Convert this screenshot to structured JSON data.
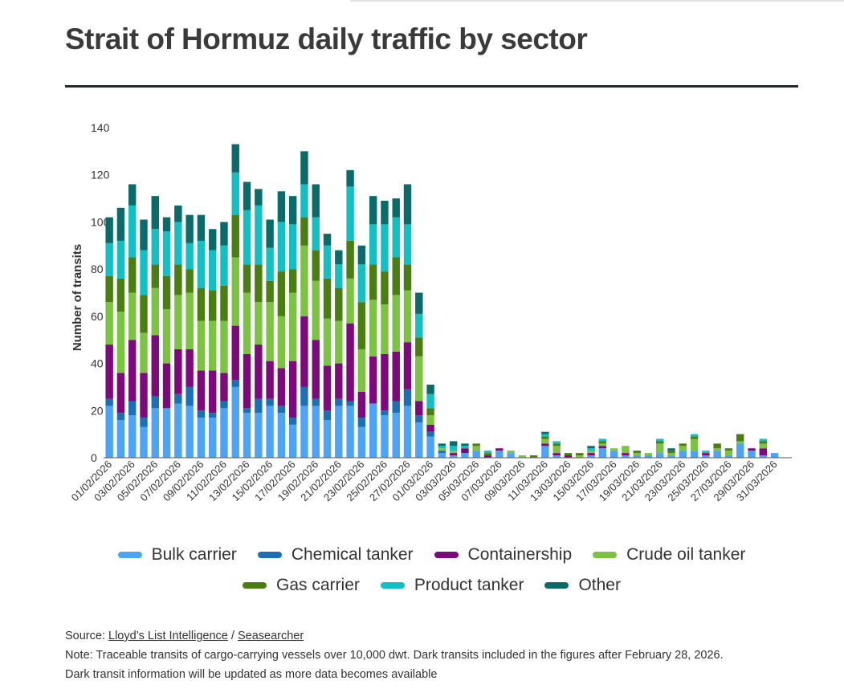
{
  "title": "Strait of Hormuz daily traffic by sector",
  "footer": {
    "source_label": "Source: ",
    "source_link_1": "Lloyd’s List Intelligence",
    "source_sep": " / ",
    "source_link_2": "Seasearcher",
    "note_line_1": "Note: Traceable transits of cargo-carrying vessels over 10,000 dwt. Dark transits included in the figures after February 28, 2026.",
    "note_line_2": "Dark transit information will be updated as more data becomes available"
  },
  "chart_data": {
    "type": "bar",
    "stacked": true,
    "title": "Strait of Hormuz daily traffic by sector",
    "ylabel": "Number of transits",
    "xlabel": "",
    "ylim": [
      0,
      140
    ],
    "yticks": [
      0,
      20,
      40,
      60,
      80,
      100,
      120,
      140
    ],
    "grid": false,
    "legend_position": "bottom",
    "categories": [
      "01/02/2026",
      "02/02/2026",
      "03/02/2026",
      "04/02/2026",
      "05/02/2026",
      "06/02/2026",
      "07/02/2026",
      "08/02/2026",
      "09/02/2026",
      "10/02/2026",
      "11/02/2026",
      "12/02/2026",
      "13/02/2026",
      "14/02/2026",
      "15/02/2026",
      "16/02/2026",
      "17/02/2026",
      "18/02/2026",
      "19/02/2026",
      "20/02/2026",
      "21/02/2026",
      "22/02/2026",
      "23/02/2026",
      "24/02/2026",
      "25/02/2026",
      "26/02/2026",
      "27/02/2026",
      "28/02/2026",
      "01/03/2026",
      "02/03/2026",
      "03/03/2026",
      "04/03/2026",
      "05/03/2026",
      "06/03/2026",
      "07/03/2026",
      "08/03/2026",
      "09/03/2026",
      "10/03/2026",
      "11/03/2026",
      "12/03/2026",
      "13/03/2026",
      "14/03/2026",
      "15/03/2026",
      "16/03/2026",
      "17/03/2026",
      "18/03/2026",
      "19/03/2026",
      "20/03/2026",
      "21/03/2026",
      "22/03/2026",
      "23/03/2026",
      "24/03/2026",
      "25/03/2026",
      "26/03/2026",
      "27/03/2026",
      "28/03/2026",
      "29/03/2026",
      "30/03/2026",
      "31/03/2026",
      "01/04/2026"
    ],
    "tick_labels_shown": [
      "01/02/2026",
      "03/02/2026",
      "05/02/2026",
      "07/02/2026",
      "09/02/2026",
      "11/02/2026",
      "13/02/2026",
      "15/02/2026",
      "17/02/2026",
      "19/02/2026",
      "21/02/2026",
      "23/02/2026",
      "25/02/2026",
      "27/02/2026",
      "01/03/2026",
      "03/03/2026",
      "05/03/2026",
      "07/03/2026",
      "09/03/2026",
      "11/03/2026",
      "13/03/2026",
      "15/03/2026",
      "17/03/2026",
      "19/03/2026",
      "21/03/2026",
      "23/03/2026",
      "25/03/2026",
      "27/03/2026",
      "29/03/2026",
      "31/03/2026"
    ],
    "series": [
      {
        "name": "Bulk carrier",
        "color": "#4da3f5",
        "values": [
          22,
          16,
          18,
          13,
          21,
          21,
          23,
          22,
          17,
          17,
          21,
          30,
          19,
          19,
          22,
          19,
          14,
          22,
          22,
          16,
          22,
          22,
          13,
          23,
          18,
          19,
          22,
          15,
          9,
          2,
          1,
          2,
          3,
          0,
          3,
          2,
          0,
          0,
          5,
          1,
          0,
          0,
          1,
          4,
          3,
          1,
          1,
          1,
          2,
          1,
          3,
          3,
          1,
          3,
          1,
          6,
          3,
          1,
          2,
          0
        ]
      },
      {
        "name": "Chemical tanker",
        "color": "#1b6fb5",
        "values": [
          3,
          3,
          6,
          4,
          5,
          0,
          4,
          8,
          3,
          2,
          3,
          3,
          2,
          6,
          3,
          3,
          3,
          8,
          3,
          4,
          3,
          2,
          4,
          0,
          2,
          5,
          7,
          3,
          2,
          1,
          0,
          0,
          0,
          0,
          0,
          0,
          0,
          0,
          0,
          0,
          0,
          0,
          0,
          0,
          0,
          0,
          0,
          0,
          0,
          0,
          0,
          0,
          0,
          0,
          0,
          0,
          0,
          0,
          0,
          0
        ]
      },
      {
        "name": "Containership",
        "color": "#7d0a7a",
        "values": [
          23,
          17,
          26,
          19,
          26,
          19,
          19,
          16,
          17,
          18,
          12,
          23,
          23,
          23,
          16,
          16,
          24,
          30,
          25,
          19,
          15,
          33,
          11,
          20,
          24,
          21,
          20,
          6,
          3,
          0,
          1,
          2,
          0,
          1,
          1,
          0,
          0,
          0,
          1,
          1,
          1,
          0,
          1,
          1,
          0,
          1,
          0,
          0,
          0,
          0,
          0,
          0,
          1,
          0,
          0,
          0,
          1,
          3,
          0,
          0
        ]
      },
      {
        "name": "Crude oil tanker",
        "color": "#7cc243",
        "values": [
          18,
          26,
          20,
          17,
          20,
          23,
          23,
          24,
          21,
          21,
          22,
          29,
          26,
          18,
          25,
          22,
          29,
          30,
          25,
          20,
          18,
          19,
          18,
          24,
          21,
          24,
          22,
          19,
          4,
          1,
          1,
          0,
          2,
          0,
          0,
          1,
          1,
          0,
          2,
          3,
          0,
          1,
          1,
          1,
          1,
          3,
          1,
          1,
          4,
          1,
          2,
          5,
          0,
          1,
          2,
          1,
          0,
          2,
          0,
          0
        ]
      },
      {
        "name": "Gas carrier",
        "color": "#4a7d12",
        "values": [
          11,
          14,
          15,
          16,
          10,
          14,
          13,
          10,
          14,
          13,
          15,
          18,
          12,
          16,
          9,
          19,
          10,
          12,
          13,
          17,
          14,
          16,
          20,
          15,
          14,
          16,
          11,
          8,
          3,
          0,
          0,
          0,
          1,
          1,
          0,
          0,
          0,
          1,
          1,
          1,
          1,
          1,
          0,
          1,
          0,
          0,
          1,
          0,
          1,
          1,
          1,
          1,
          0,
          2,
          1,
          3,
          0,
          1,
          0,
          0
        ]
      },
      {
        "name": "Product tanker",
        "color": "#13bfc3",
        "values": [
          14,
          16,
          22,
          19,
          15,
          19,
          18,
          11,
          20,
          17,
          17,
          18,
          23,
          25,
          14,
          21,
          19,
          14,
          14,
          14,
          10,
          23,
          16,
          17,
          20,
          17,
          17,
          10,
          6,
          1,
          2,
          1,
          0,
          1,
          0,
          0,
          0,
          0,
          1,
          1,
          0,
          0,
          1,
          1,
          0,
          0,
          0,
          0,
          1,
          0,
          0,
          1,
          1,
          0,
          0,
          0,
          0,
          1,
          0,
          0
        ]
      },
      {
        "name": "Other",
        "color": "#0b6b6b",
        "values": [
          11,
          14,
          9,
          13,
          14,
          6,
          7,
          12,
          11,
          9,
          10,
          12,
          12,
          7,
          12,
          13,
          12,
          14,
          14,
          5,
          6,
          7,
          8,
          12,
          10,
          8,
          17,
          9,
          4,
          1,
          2,
          1,
          0,
          0,
          0,
          0,
          0,
          0,
          1,
          0,
          0,
          0,
          1,
          0,
          0,
          0,
          0,
          0,
          0,
          1,
          0,
          0,
          0,
          0,
          0,
          0,
          0,
          0,
          0,
          0
        ]
      }
    ]
  }
}
